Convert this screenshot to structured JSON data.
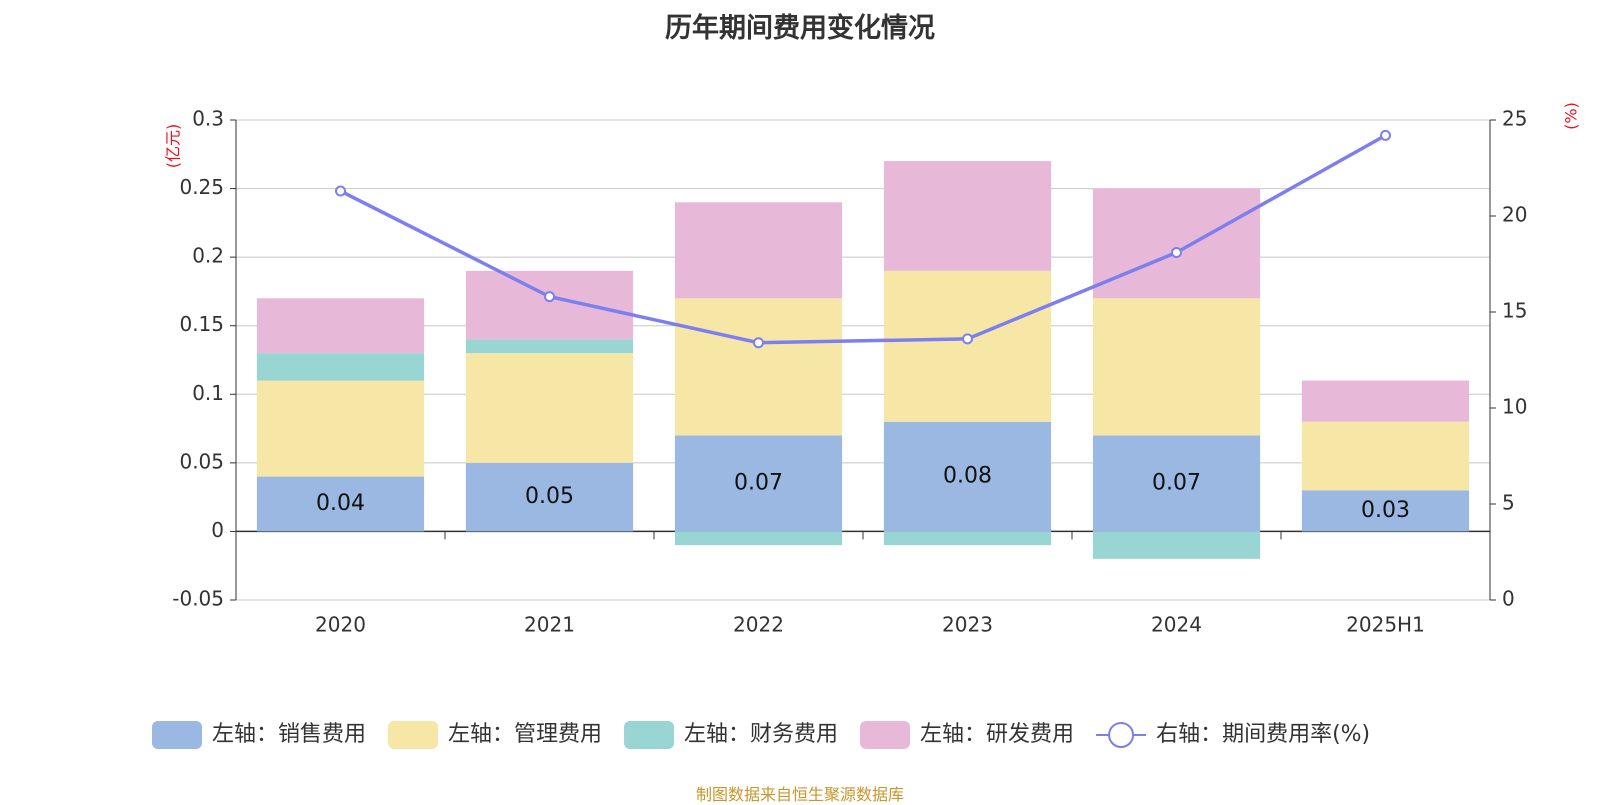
{
  "chart_data": {
    "type": "bar",
    "stacked": true,
    "title": "历年期间费用变化情况",
    "categories": [
      "2020",
      "2021",
      "2022",
      "2023",
      "2024",
      "2025H1"
    ],
    "left_axis": {
      "unit": "(亿元)",
      "ylim": [
        -0.05,
        0.3
      ],
      "ticks": [
        -0.05,
        0,
        0.05,
        0.1,
        0.15,
        0.2,
        0.25,
        0.3
      ],
      "tick_labels": [
        "-0.05",
        "0",
        "0.05",
        "0.1",
        "0.15",
        "0.2",
        "0.25",
        "0.3"
      ]
    },
    "right_axis": {
      "unit": "(%)",
      "ylim": [
        0,
        25
      ],
      "ticks": [
        0,
        5,
        10,
        15,
        20,
        25
      ],
      "tick_labels": [
        "0",
        "5",
        "10",
        "15",
        "20",
        "25"
      ]
    },
    "grid": true,
    "legend_position": "bottom",
    "series": [
      {
        "name": "左轴：销售费用",
        "axis": "left",
        "type": "bar",
        "color": "#9bb8e2",
        "values": [
          0.04,
          0.05,
          0.07,
          0.08,
          0.07,
          0.03
        ],
        "labels": [
          "0.04",
          "0.05",
          "0.07",
          "0.08",
          "0.07",
          "0.03"
        ]
      },
      {
        "name": "左轴：管理费用",
        "axis": "left",
        "type": "bar",
        "color": "#f7e7a6",
        "values": [
          0.07,
          0.08,
          0.1,
          0.11,
          0.1,
          0.05
        ]
      },
      {
        "name": "左轴：财务费用",
        "axis": "left",
        "type": "bar",
        "color": "#98d5d3",
        "values": [
          0.02,
          0.01,
          -0.01,
          -0.01,
          -0.02,
          0.0
        ]
      },
      {
        "name": "左轴：研发费用",
        "axis": "left",
        "type": "bar",
        "color": "#e8b8d8",
        "values": [
          0.04,
          0.05,
          0.07,
          0.08,
          0.08,
          0.03
        ]
      },
      {
        "name": "右轴：期间费用率(%)",
        "axis": "right",
        "type": "line",
        "color": "#7b7ff0",
        "values": [
          21.3,
          15.8,
          13.4,
          13.6,
          18.1,
          24.2
        ]
      }
    ]
  },
  "source_note": "制图数据来自恒生聚源数据库"
}
